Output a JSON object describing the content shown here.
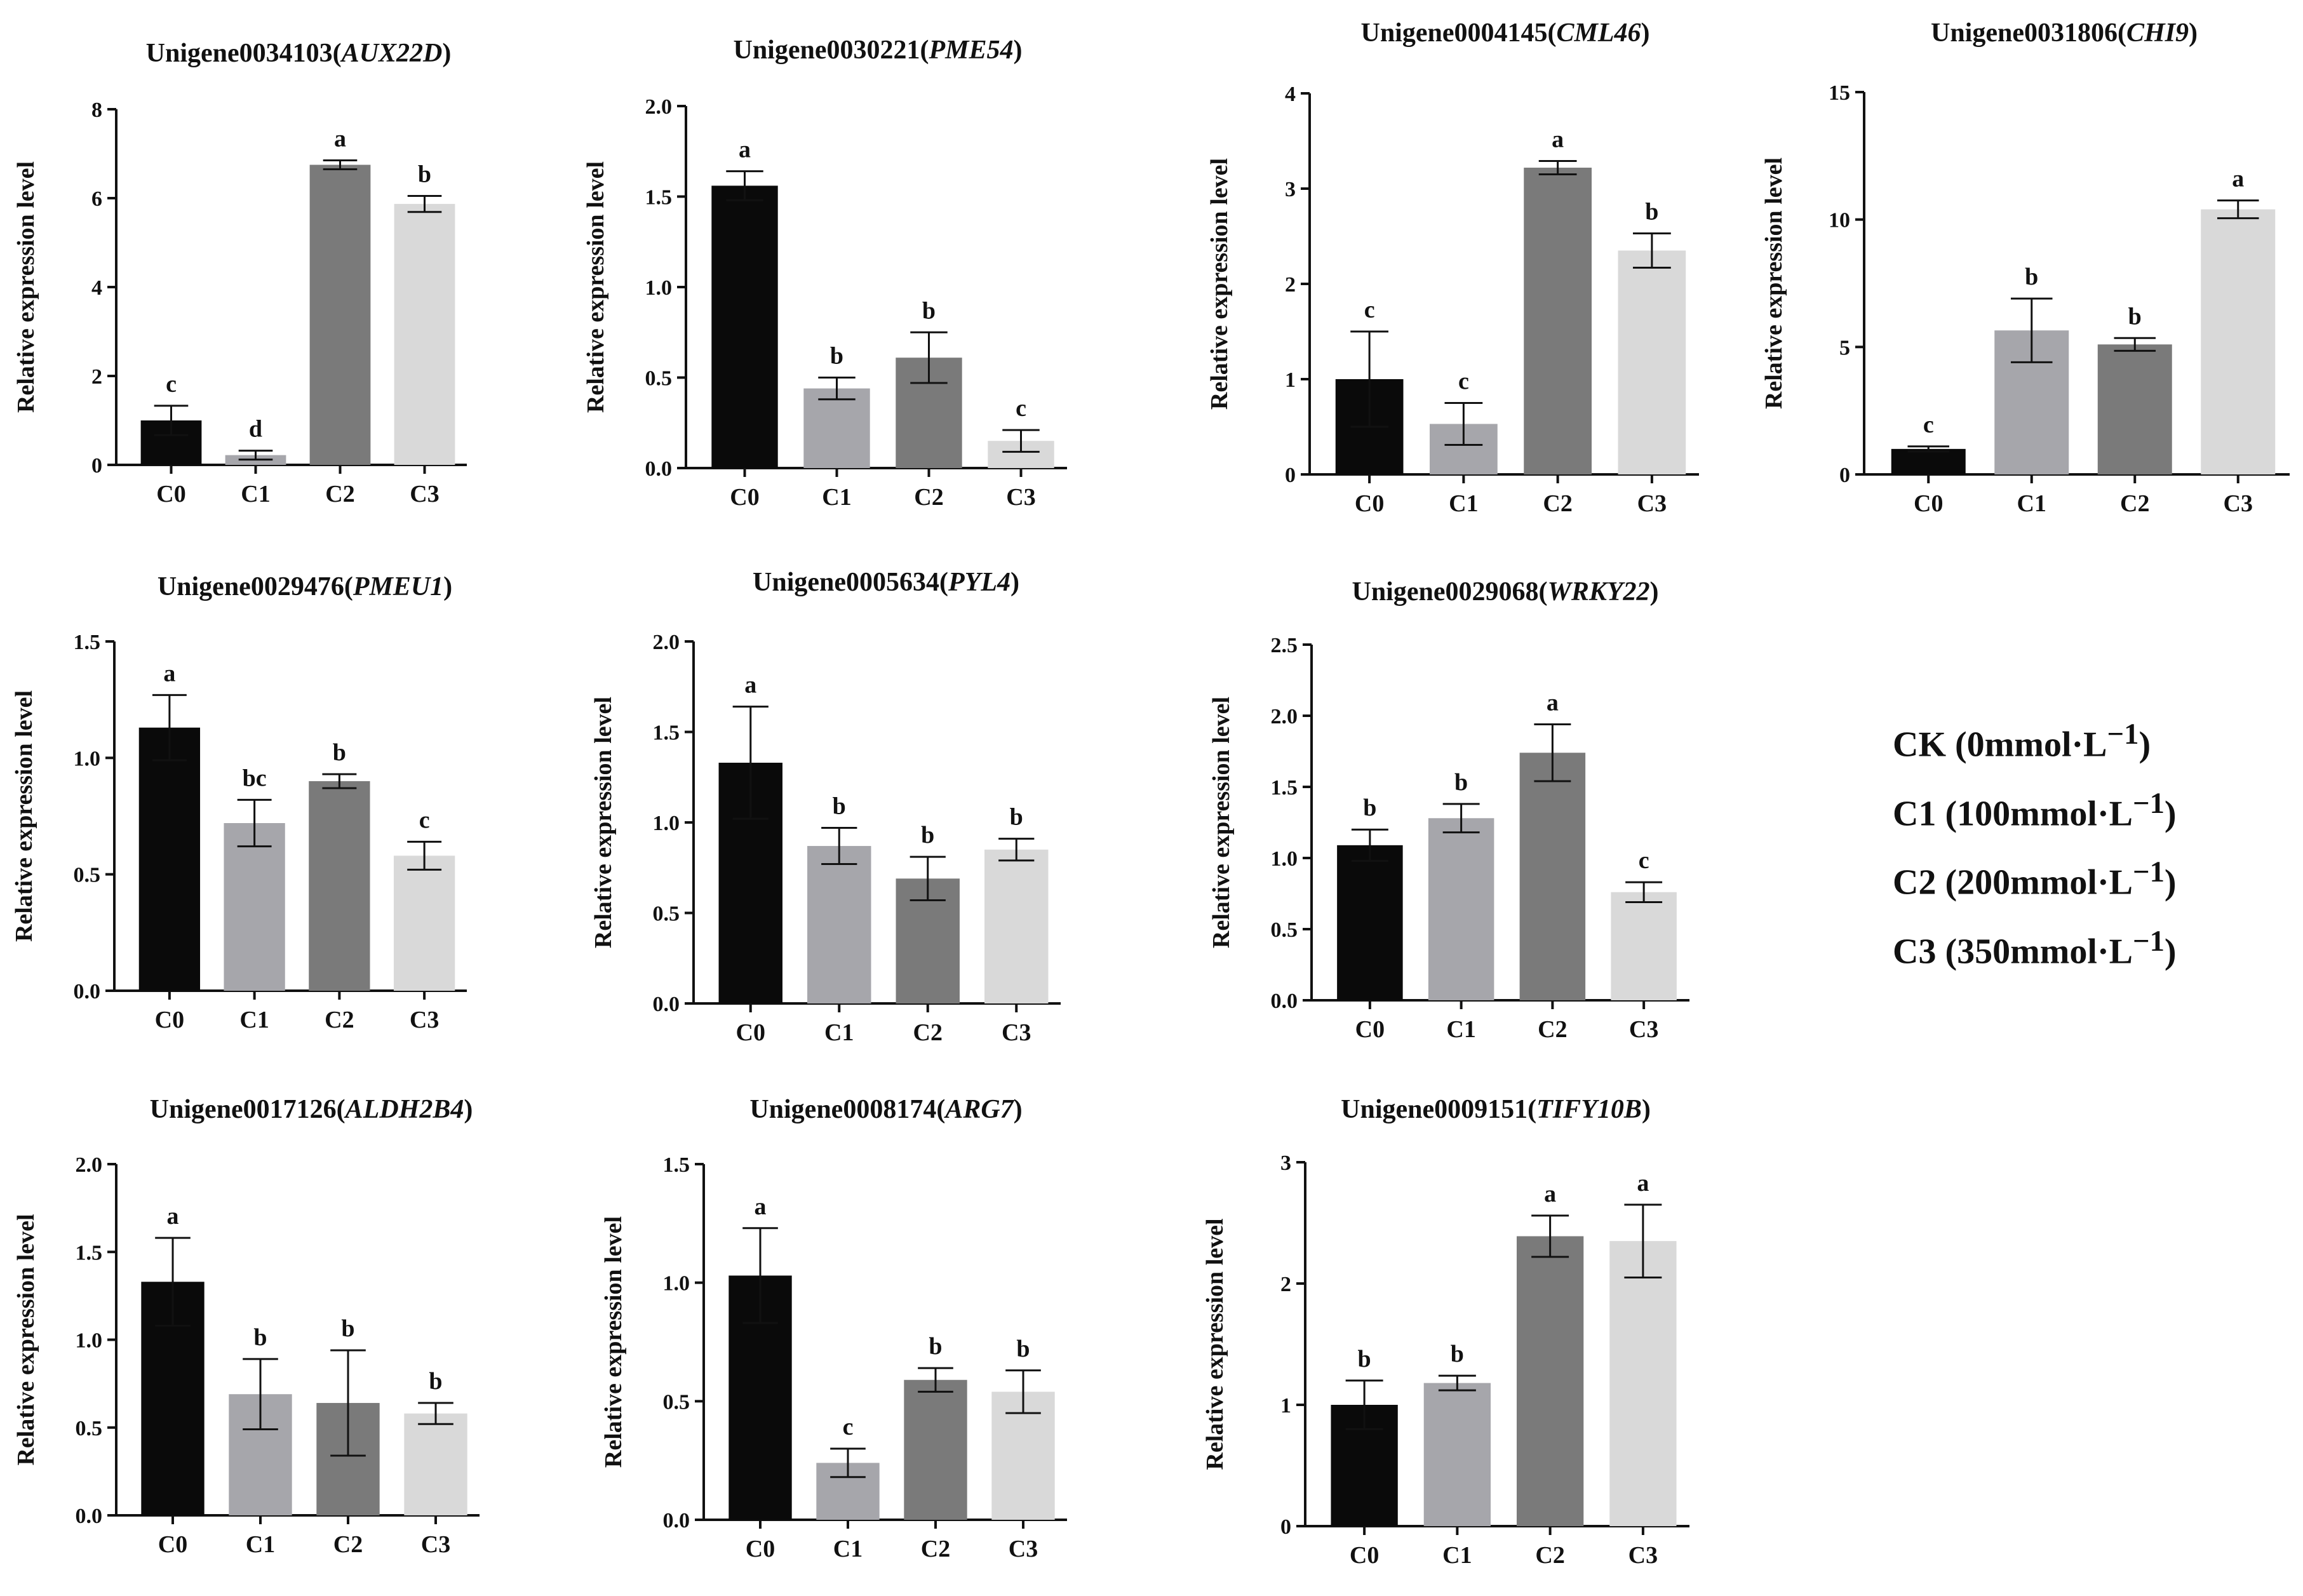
{
  "chart_data": [
    {
      "type": "bar",
      "title_id": "Unigene0034103",
      "title_gene": "AUX22D",
      "ylabel": "Relative expression level",
      "categories": [
        "C0",
        "C1",
        "C2",
        "C3"
      ],
      "values": [
        1.0,
        0.22,
        6.75,
        5.87
      ],
      "errors": [
        0.33,
        0.1,
        0.1,
        0.18
      ],
      "letters": [
        "c",
        "d",
        "a",
        "b"
      ],
      "colors": [
        "#0a0a0a",
        "#a6a6ab",
        "#7a7a7a",
        "#d9d9d9"
      ],
      "ylim": [
        0,
        8
      ],
      "yticks": [
        0,
        2,
        4,
        6,
        8
      ],
      "ytick_labels": [
        "0",
        "2",
        "4",
        "6",
        "8"
      ]
    },
    {
      "type": "bar",
      "title_id": "Unigene0030221",
      "title_gene": "PME54",
      "ylabel": "Relative expression level",
      "categories": [
        "C0",
        "C1",
        "C2",
        "C3"
      ],
      "values": [
        1.56,
        0.44,
        0.61,
        0.15
      ],
      "errors": [
        0.08,
        0.06,
        0.14,
        0.06
      ],
      "letters": [
        "a",
        "b",
        "b",
        "c"
      ],
      "colors": [
        "#0a0a0a",
        "#a6a6ab",
        "#7a7a7a",
        "#d9d9d9"
      ],
      "ylim": [
        0,
        2.0
      ],
      "yticks": [
        0,
        0.5,
        1.0,
        1.5,
        2.0
      ],
      "ytick_labels": [
        "0.0",
        "0.5",
        "1.0",
        "1.5",
        "2.0"
      ]
    },
    {
      "type": "bar",
      "title_id": "Unigene0004145",
      "title_gene": "CML46",
      "ylabel": "Relative expression level",
      "categories": [
        "C0",
        "C1",
        "C2",
        "C3"
      ],
      "values": [
        1.0,
        0.53,
        3.22,
        2.35
      ],
      "errors": [
        0.5,
        0.22,
        0.07,
        0.18
      ],
      "letters": [
        "c",
        "c",
        "a",
        "b"
      ],
      "colors": [
        "#0a0a0a",
        "#a6a6ab",
        "#7a7a7a",
        "#d9d9d9"
      ],
      "ylim": [
        0,
        4
      ],
      "yticks": [
        0,
        1,
        2,
        3,
        4
      ],
      "ytick_labels": [
        "0",
        "1",
        "2",
        "3",
        "4"
      ]
    },
    {
      "type": "bar",
      "title_id": "Unigene0031806",
      "title_gene": "CHI9",
      "ylabel": "Relative expression level",
      "categories": [
        "C0",
        "C1",
        "C2",
        "C3"
      ],
      "values": [
        1.0,
        5.65,
        5.1,
        10.4
      ],
      "errors": [
        0.1,
        1.25,
        0.25,
        0.35
      ],
      "letters": [
        "c",
        "b",
        "b",
        "a"
      ],
      "colors": [
        "#0a0a0a",
        "#a6a6ab",
        "#7a7a7a",
        "#d9d9d9"
      ],
      "ylim": [
        0,
        15
      ],
      "yticks": [
        0,
        5,
        10,
        15
      ],
      "ytick_labels": [
        "0",
        "5",
        "10",
        "15"
      ]
    },
    {
      "type": "bar",
      "title_id": "Unigene0029476",
      "title_gene": "PMEU1",
      "ylabel": "Relative expression level",
      "categories": [
        "C0",
        "C1",
        "C2",
        "C3"
      ],
      "values": [
        1.13,
        0.72,
        0.9,
        0.58
      ],
      "errors": [
        0.14,
        0.1,
        0.03,
        0.06
      ],
      "letters": [
        "a",
        "bc",
        "b",
        "c"
      ],
      "colors": [
        "#0a0a0a",
        "#a6a6ab",
        "#7a7a7a",
        "#d9d9d9"
      ],
      "ylim": [
        0,
        1.5
      ],
      "yticks": [
        0,
        0.5,
        1.0,
        1.5
      ],
      "ytick_labels": [
        "0.0",
        "0.5",
        "1.0",
        "1.5"
      ]
    },
    {
      "type": "bar",
      "title_id": "Unigene0005634",
      "title_gene": "PYL4",
      "ylabel": "Relative expression level",
      "categories": [
        "C0",
        "C1",
        "C2",
        "C3"
      ],
      "values": [
        1.33,
        0.87,
        0.69,
        0.85
      ],
      "errors": [
        0.31,
        0.1,
        0.12,
        0.06
      ],
      "letters": [
        "a",
        "b",
        "b",
        "b"
      ],
      "colors": [
        "#0a0a0a",
        "#a6a6ab",
        "#7a7a7a",
        "#d9d9d9"
      ],
      "ylim": [
        0,
        2.0
      ],
      "yticks": [
        0,
        0.5,
        1.0,
        1.5,
        2.0
      ],
      "ytick_labels": [
        "0.0",
        "0.5",
        "1.0",
        "1.5",
        "2.0"
      ]
    },
    {
      "type": "bar",
      "title_id": "Unigene0029068",
      "title_gene": "WRKY22",
      "ylabel": "Relative expression level",
      "categories": [
        "C0",
        "C1",
        "C2",
        "C3"
      ],
      "values": [
        1.09,
        1.28,
        1.74,
        0.76
      ],
      "errors": [
        0.11,
        0.1,
        0.2,
        0.07
      ],
      "letters": [
        "b",
        "b",
        "a",
        "c"
      ],
      "colors": [
        "#0a0a0a",
        "#a6a6ab",
        "#7a7a7a",
        "#d9d9d9"
      ],
      "ylim": [
        0,
        2.5
      ],
      "yticks": [
        0,
        0.5,
        1.0,
        1.5,
        2.0,
        2.5
      ],
      "ytick_labels": [
        "0.0",
        "0.5",
        "1.0",
        "1.5",
        "2.0",
        "2.5"
      ]
    },
    {
      "type": "bar",
      "title_id": "Unigene0017126",
      "title_gene": "ALDH2B4",
      "ylabel": "Relative expression level",
      "categories": [
        "C0",
        "C1",
        "C2",
        "C3"
      ],
      "values": [
        1.33,
        0.69,
        0.64,
        0.58
      ],
      "errors": [
        0.25,
        0.2,
        0.3,
        0.06
      ],
      "letters": [
        "a",
        "b",
        "b",
        "b"
      ],
      "colors": [
        "#0a0a0a",
        "#a6a6ab",
        "#7a7a7a",
        "#d9d9d9"
      ],
      "ylim": [
        0,
        2.0
      ],
      "yticks": [
        0,
        0.5,
        1.0,
        1.5,
        2.0
      ],
      "ytick_labels": [
        "0.0",
        "0.5",
        "1.0",
        "1.5",
        "2.0"
      ]
    },
    {
      "type": "bar",
      "title_id": "Unigene0008174",
      "title_gene": "ARG7",
      "ylabel": "Relative expression level",
      "categories": [
        "C0",
        "C1",
        "C2",
        "C3"
      ],
      "values": [
        1.03,
        0.24,
        0.59,
        0.54
      ],
      "errors": [
        0.2,
        0.06,
        0.05,
        0.09
      ],
      "letters": [
        "a",
        "c",
        "b",
        "b"
      ],
      "colors": [
        "#0a0a0a",
        "#a6a6ab",
        "#7a7a7a",
        "#d9d9d9"
      ],
      "ylim": [
        0,
        1.5
      ],
      "yticks": [
        0,
        0.5,
        1.0,
        1.5
      ],
      "ytick_labels": [
        "0.0",
        "0.5",
        "1.0",
        "1.5"
      ]
    },
    {
      "type": "bar",
      "title_id": "Unigene0009151",
      "title_gene": "TIFY10B",
      "ylabel": "Relative expression level",
      "categories": [
        "C0",
        "C1",
        "C2",
        "C3"
      ],
      "values": [
        1.0,
        1.18,
        2.39,
        2.35
      ],
      "errors": [
        0.2,
        0.06,
        0.17,
        0.3
      ],
      "letters": [
        "b",
        "b",
        "a",
        "a"
      ],
      "colors": [
        "#0a0a0a",
        "#a6a6ab",
        "#7a7a7a",
        "#d9d9d9"
      ],
      "ylim": [
        0,
        3
      ],
      "yticks": [
        0,
        1,
        2,
        3
      ],
      "ytick_labels": [
        "0",
        "1",
        "2",
        "3"
      ]
    }
  ],
  "legend": {
    "entries": [
      {
        "label": "CK",
        "conc": "(0mmol·L",
        "sup": "−1",
        "close": ")"
      },
      {
        "label": "C1",
        "conc": "(100mmol·L",
        "sup": "−1",
        "close": ")"
      },
      {
        "label": "C2",
        "conc": "(200mmol·L",
        "sup": "−1",
        "close": ")"
      },
      {
        "label": "C3",
        "conc": "(350mmol·L",
        "sup": "−1",
        "close": ")"
      }
    ]
  }
}
